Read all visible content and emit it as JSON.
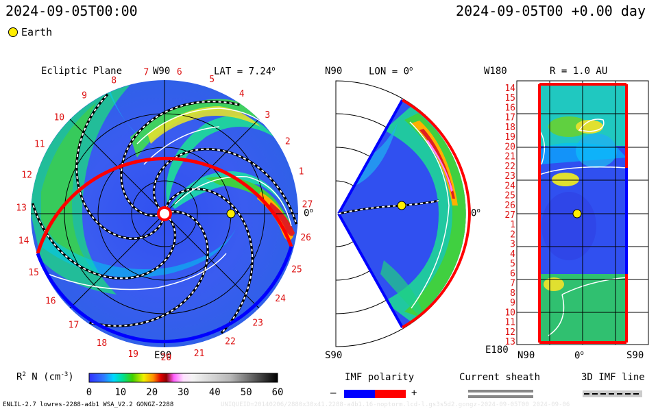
{
  "header": {
    "date_left": "2024-09-05T00:00",
    "date_right": "2024-09-05T00 +0.00 day",
    "legend_earth": "Earth"
  },
  "colors": {
    "earth": "#ffee00",
    "imf_negative": "#0000ff",
    "imf_positive": "#ff0000",
    "background_wind": "#2a50e8"
  },
  "chart_data": [
    {
      "type": "heatmap",
      "panel": "ecliptic",
      "title": "Ecliptic Plane",
      "top_label": "W90",
      "bottom_label": "E90",
      "right_label": "0",
      "lat_label": "LAT = 7.24",
      "lat_value": 7.24,
      "carrington_labels": [
        "1",
        "2",
        "3",
        "4",
        "5",
        "6",
        "7",
        "8",
        "9",
        "10",
        "11",
        "12",
        "13",
        "14",
        "15",
        "16",
        "17",
        "18",
        "19",
        "20",
        "21",
        "22",
        "23",
        "24",
        "25",
        "26",
        "27"
      ],
      "range_circles_au": [
        0.5,
        1.0,
        1.5,
        2.0
      ]
    },
    {
      "type": "heatmap",
      "panel": "meridional",
      "top_label": "N90",
      "bottom_label": "S90",
      "right_label": "0",
      "lon_label": "LON = 0",
      "lon_value": 0
    },
    {
      "type": "heatmap",
      "panel": "sphere",
      "top_label": "W180",
      "bottom_label": "E180",
      "radius_label": "R = 1.0 AU",
      "radius_au": 1.0,
      "x_labels": [
        "N90",
        "0",
        "S90"
      ],
      "y_labels": [
        "14",
        "15",
        "16",
        "17",
        "18",
        "19",
        "20",
        "21",
        "22",
        "23",
        "24",
        "25",
        "26",
        "27",
        "1",
        "2",
        "3",
        "4",
        "5",
        "6",
        "7",
        "8",
        "9",
        "10",
        "11",
        "12",
        "13"
      ]
    }
  ],
  "colorbar": {
    "label": "R",
    "label_sup": "2",
    "label_rest": " N (cm",
    "label_sup2": "-3",
    "label_end": ")",
    "ticks": [
      "0",
      "10",
      "20",
      "30",
      "40",
      "50",
      "60"
    ],
    "min": 0,
    "max": 60
  },
  "imf_legend": {
    "title": "IMF polarity",
    "minus": "–",
    "plus": "+"
  },
  "sheath_legend": {
    "title": "Current sheath"
  },
  "imf3d_legend": {
    "title": "3D IMF line"
  },
  "footer": {
    "left": "ENLIL-2.7 lowres-2288-a4b1 WSA_V2.2 GONGZ-2288",
    "right": "UNIQUEID=20140206/2880x30x41.2288-a4b1.16-noptorm.lcd-l.gs3s5d2.gongz-2024-09-05T00   2024-09-06"
  }
}
